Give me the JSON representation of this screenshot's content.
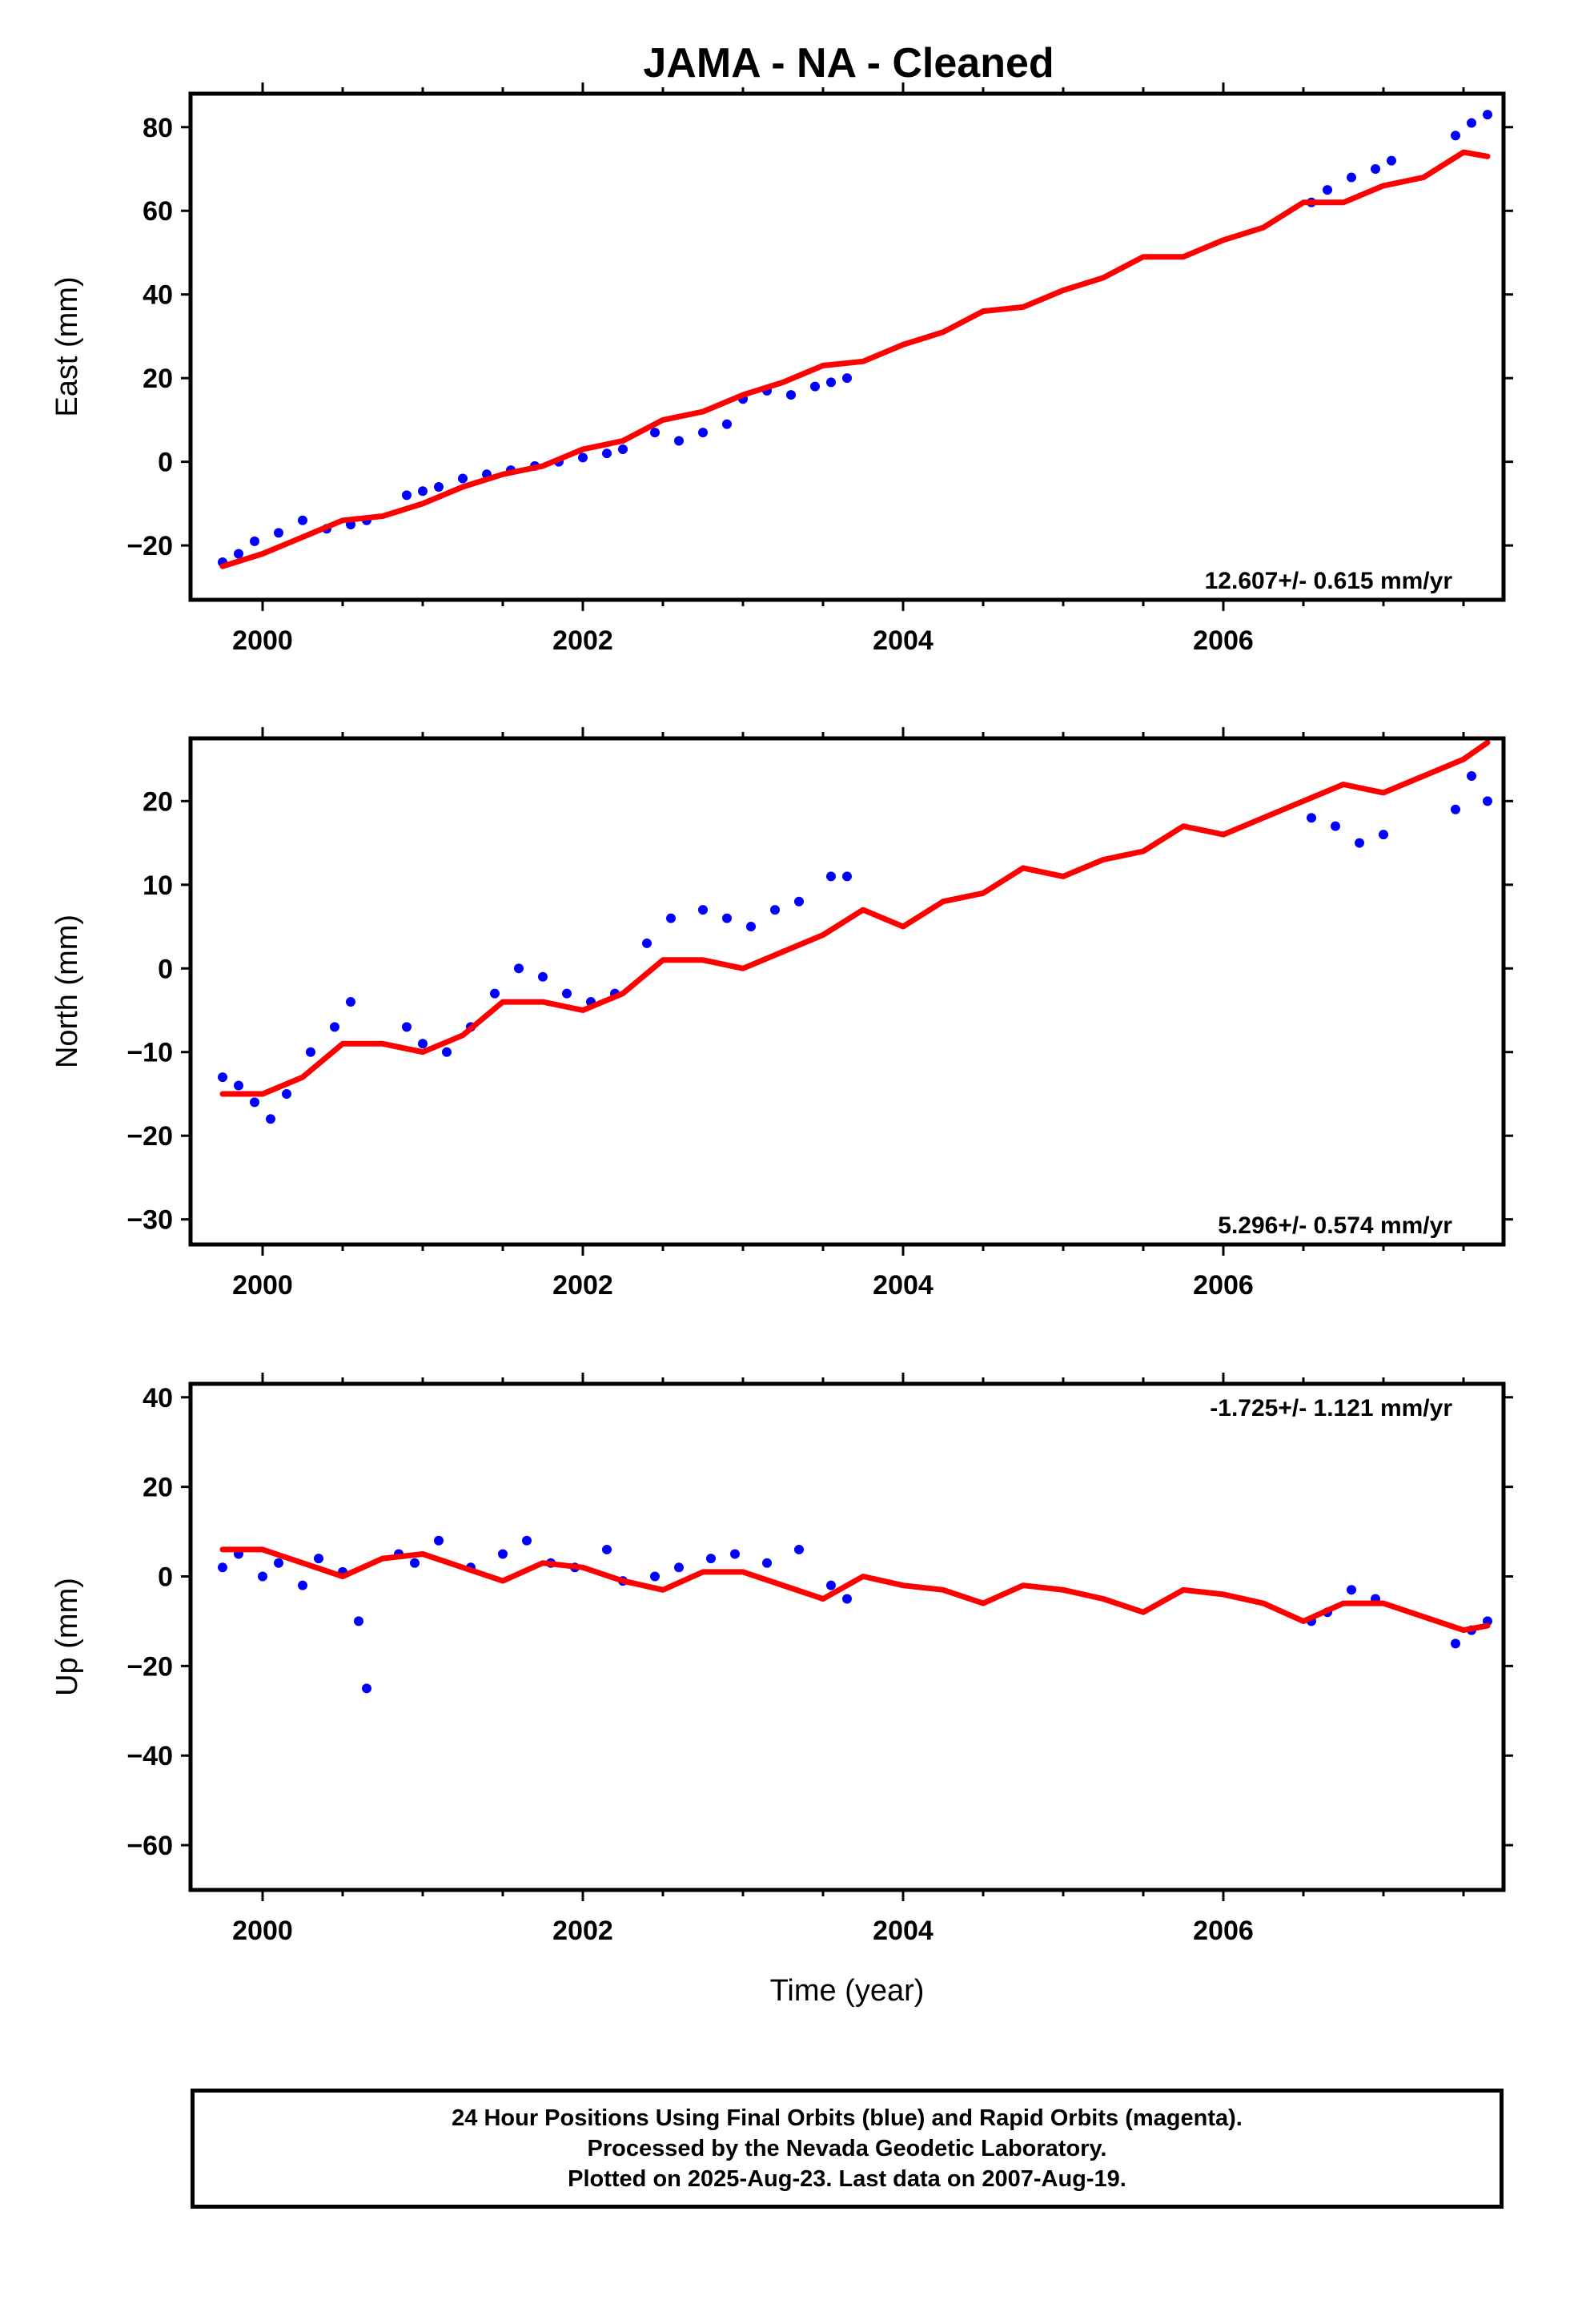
{
  "title": "JAMA  - NA - Cleaned",
  "x_axis": {
    "label": "Time (year)",
    "range": [
      1999.55,
      2007.75
    ],
    "ticks": [
      "2000",
      "2002",
      "2004",
      "2006"
    ]
  },
  "colors": {
    "points": "#0000ff",
    "model": "#ff0000",
    "frame": "#000000"
  },
  "chart_data": [
    {
      "type": "scatter",
      "id": "east",
      "ylabel": "East (mm)",
      "ylim": [
        -33,
        88
      ],
      "yticks": [
        -20,
        0,
        20,
        40,
        60,
        80
      ],
      "rate_text": "12.607+/- 0.615 mm/yr",
      "rate_position": "bottom-right",
      "series": [
        {
          "type": "scatter",
          "color": "#0000ff",
          "x": [
            1999.75,
            1999.85,
            1999.95,
            2000.1,
            2000.25,
            2000.4,
            2000.55,
            2000.65,
            2000.9,
            2001.0,
            2001.1,
            2001.25,
            2001.4,
            2001.55,
            2001.7,
            2001.85,
            2002.0,
            2002.15,
            2002.25,
            2002.45,
            2002.6,
            2002.75,
            2002.9,
            2003.0,
            2003.15,
            2003.3,
            2003.45,
            2003.55,
            2003.65,
            2006.55,
            2006.65,
            2006.8,
            2006.95,
            2007.05,
            2007.45,
            2007.55,
            2007.65
          ],
          "y": [
            -24,
            -22,
            -19,
            -17,
            -14,
            -16,
            -15,
            -14,
            -8,
            -7,
            -6,
            -4,
            -3,
            -2,
            -1,
            0,
            1,
            2,
            3,
            7,
            5,
            7,
            9,
            15,
            17,
            16,
            18,
            19,
            20,
            62,
            65,
            68,
            70,
            72,
            78,
            81,
            83
          ]
        },
        {
          "type": "line",
          "color": "#ff0000",
          "x": [
            1999.75,
            2000.0,
            2000.25,
            2000.5,
            2000.75,
            2001.0,
            2001.25,
            2001.5,
            2001.75,
            2002.0,
            2002.25,
            2002.5,
            2002.75,
            2003.0,
            2003.25,
            2003.5,
            2003.75,
            2004.0,
            2004.25,
            2004.5,
            2004.75,
            2005.0,
            2005.25,
            2005.5,
            2005.75,
            2006.0,
            2006.25,
            2006.5,
            2006.75,
            2007.0,
            2007.25,
            2007.5,
            2007.65
          ],
          "y": [
            -25,
            -22,
            -18,
            -14,
            -13,
            -10,
            -6,
            -3,
            -1,
            3,
            5,
            10,
            12,
            16,
            19,
            23,
            24,
            28,
            31,
            36,
            37,
            41,
            44,
            49,
            49,
            53,
            56,
            62,
            62,
            66,
            68,
            74,
            73
          ]
        }
      ]
    },
    {
      "type": "scatter",
      "id": "north",
      "ylabel": "North (mm)",
      "ylim": [
        -33,
        27.5
      ],
      "yticks": [
        -30,
        -20,
        -10,
        0,
        10,
        20
      ],
      "rate_text": "5.296+/- 0.574 mm/yr",
      "rate_position": "bottom-right",
      "series": [
        {
          "type": "scatter",
          "color": "#0000ff",
          "x": [
            1999.75,
            1999.85,
            1999.95,
            2000.05,
            2000.15,
            2000.3,
            2000.45,
            2000.55,
            2000.9,
            2001.0,
            2001.15,
            2001.3,
            2001.45,
            2001.6,
            2001.75,
            2001.9,
            2002.05,
            2002.2,
            2002.4,
            2002.55,
            2002.75,
            2002.9,
            2003.05,
            2003.2,
            2003.35,
            2003.55,
            2003.65,
            2006.55,
            2006.7,
            2006.85,
            2007.0,
            2007.45,
            2007.55,
            2007.65
          ],
          "y": [
            -13,
            -14,
            -16,
            -18,
            -15,
            -10,
            -7,
            -4,
            -7,
            -9,
            -10,
            -7,
            -3,
            0,
            -1,
            -3,
            -4,
            -3,
            3,
            6,
            7,
            6,
            5,
            7,
            8,
            11,
            11,
            18,
            17,
            15,
            16,
            19,
            23,
            20
          ]
        },
        {
          "type": "line",
          "color": "#ff0000",
          "x": [
            1999.75,
            2000.0,
            2000.25,
            2000.5,
            2000.75,
            2001.0,
            2001.25,
            2001.5,
            2001.75,
            2002.0,
            2002.25,
            2002.5,
            2002.75,
            2003.0,
            2003.25,
            2003.5,
            2003.75,
            2004.0,
            2004.25,
            2004.5,
            2004.75,
            2005.0,
            2005.25,
            2005.5,
            2005.75,
            2006.0,
            2006.25,
            2006.5,
            2006.75,
            2007.0,
            2007.25,
            2007.5,
            2007.65
          ],
          "y": [
            -15,
            -15,
            -13,
            -9,
            -9,
            -10,
            -8,
            -4,
            -4,
            -5,
            -3,
            1,
            1,
            0,
            2,
            4,
            7,
            5,
            8,
            9,
            12,
            11,
            13,
            14,
            17,
            16,
            18,
            20,
            22,
            21,
            23,
            25,
            27
          ]
        }
      ]
    },
    {
      "type": "scatter",
      "id": "up",
      "ylabel": "Up (mm)",
      "ylim": [
        -70,
        43
      ],
      "yticks": [
        -60,
        -40,
        -20,
        0,
        20,
        40
      ],
      "rate_text": "-1.725+/- 1.121 mm/yr",
      "rate_position": "top-right",
      "series": [
        {
          "type": "scatter",
          "color": "#0000ff",
          "x": [
            1999.75,
            1999.85,
            2000.0,
            2000.1,
            2000.25,
            2000.35,
            2000.5,
            2000.6,
            2000.65,
            2000.85,
            2000.95,
            2001.1,
            2001.3,
            2001.5,
            2001.65,
            2001.8,
            2001.95,
            2002.15,
            2002.25,
            2002.45,
            2002.6,
            2002.8,
            2002.95,
            2003.15,
            2003.35,
            2003.55,
            2003.65,
            2006.55,
            2006.65,
            2006.8,
            2006.95,
            2007.45,
            2007.55,
            2007.65
          ],
          "y": [
            2,
            5,
            0,
            3,
            -2,
            4,
            1,
            -10,
            -25,
            5,
            3,
            8,
            2,
            5,
            8,
            3,
            2,
            6,
            -1,
            0,
            2,
            4,
            5,
            3,
            6,
            -2,
            -5,
            -10,
            -8,
            -3,
            -5,
            -15,
            -12,
            -10
          ]
        },
        {
          "type": "line",
          "color": "#ff0000",
          "x": [
            1999.75,
            2000.0,
            2000.25,
            2000.5,
            2000.75,
            2001.0,
            2001.25,
            2001.5,
            2001.75,
            2002.0,
            2002.25,
            2002.5,
            2002.75,
            2003.0,
            2003.25,
            2003.5,
            2003.75,
            2004.0,
            2004.25,
            2004.5,
            2004.75,
            2005.0,
            2005.25,
            2005.5,
            2005.75,
            2006.0,
            2006.25,
            2006.5,
            2006.75,
            2007.0,
            2007.25,
            2007.5,
            2007.65
          ],
          "y": [
            6,
            6,
            3,
            0,
            4,
            5,
            2,
            -1,
            3,
            2,
            -1,
            -3,
            1,
            1,
            -2,
            -5,
            0,
            -2,
            -3,
            -6,
            -2,
            -3,
            -5,
            -8,
            -3,
            -4,
            -6,
            -10,
            -6,
            -6,
            -9,
            -12,
            -11
          ]
        }
      ]
    }
  ],
  "footer": {
    "line1": "24 Hour Positions Using Final Orbits (blue) and Rapid Orbits (magenta).",
    "line2": "Processed by the Nevada Geodetic Laboratory.",
    "line3": "Plotted on 2025-Aug-23. Last data on 2007-Aug-19."
  }
}
